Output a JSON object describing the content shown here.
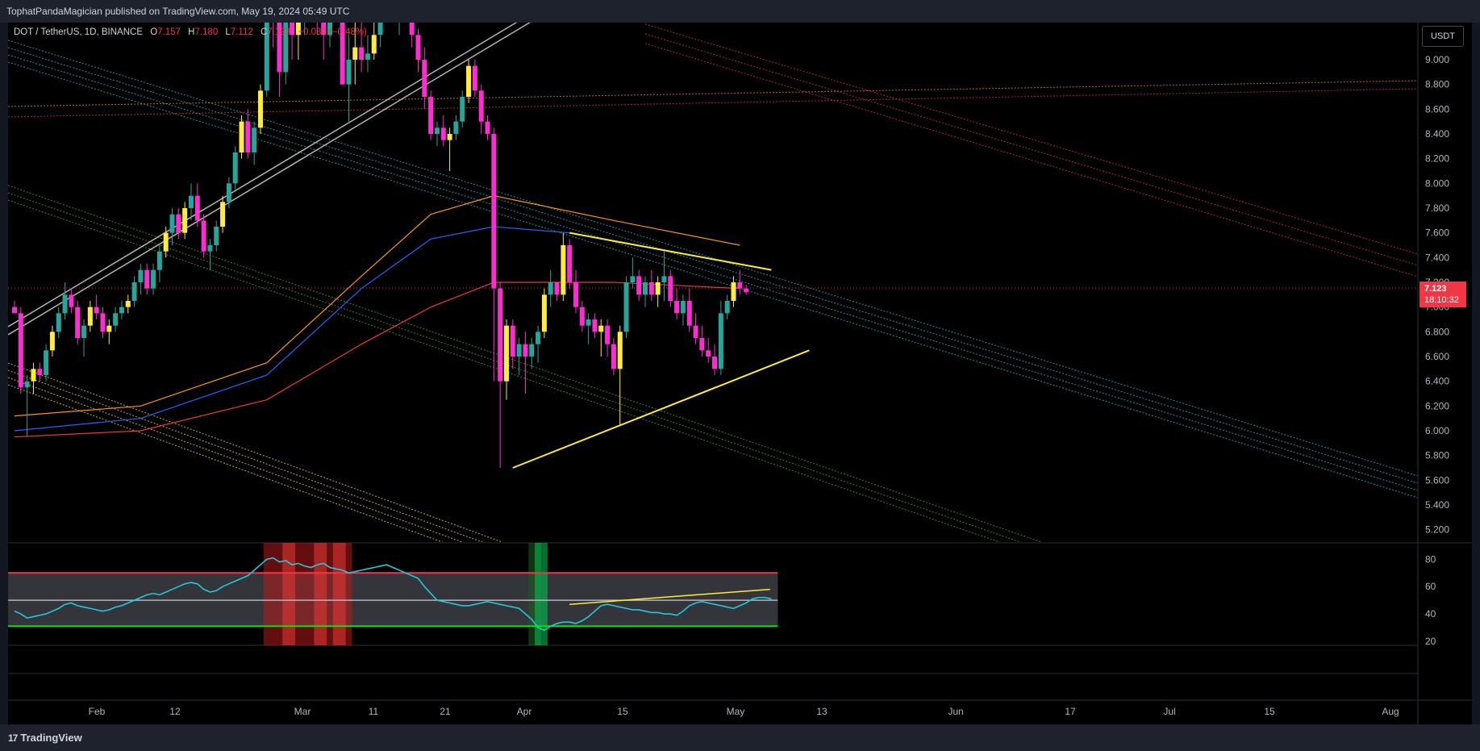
{
  "header": {
    "published": "TophatPandaMagician published on TradingView.com, May 19, 2024 05:49 UTC"
  },
  "legend": {
    "symbol": "DOT / TetherUS, 1D, BINANCE",
    "open_label": "O",
    "open": "7.157",
    "high_label": "H",
    "high": "7.180",
    "low_label": "L",
    "low": "7.112",
    "close_label": "C",
    "close": "7.123",
    "change": "−0.034 (−0.48%)"
  },
  "currency": "USDT",
  "last_price": {
    "value": "7.123",
    "countdown": "18:10:32"
  },
  "footer": {
    "brand": "TradingView",
    "brand_icon": "tradingview-logo-icon"
  },
  "colors": {
    "up": "#26a69a",
    "down": "#ff2bd3",
    "yellow": "#ffeb3b",
    "ema_orange": "#ff9800",
    "ema_blue": "#2962ff",
    "ema_red": "#f23645",
    "rsi_line": "#26c6da",
    "rsi_upper": "#f23645",
    "rsi_lower": "#00e600"
  },
  "chart_data": {
    "type": "candlestick",
    "price_axis": {
      "ticks": [
        "9.000",
        "8.800",
        "8.600",
        "8.400",
        "8.200",
        "8.000",
        "7.800",
        "7.600",
        "7.400",
        "7.200",
        "7.000",
        "6.800",
        "6.600",
        "6.400",
        "6.200",
        "6.000",
        "5.800",
        "5.600",
        "5.400",
        "5.200"
      ],
      "ylim": [
        5.1,
        9.3
      ]
    },
    "x_axis": {
      "ticks": [
        "Feb",
        "12",
        "Mar",
        "11",
        "21",
        "Apr",
        "15",
        "May",
        "13",
        "Jun",
        "17",
        "Jul",
        "15",
        "Aug"
      ]
    },
    "candles": [
      [
        7.0,
        7.05,
        6.95,
        6.95
      ],
      [
        6.95,
        7.0,
        6.3,
        6.35
      ],
      [
        6.35,
        6.45,
        5.95,
        6.4
      ],
      [
        6.4,
        6.55,
        6.3,
        6.5
      ],
      [
        6.5,
        6.55,
        6.4,
        6.45
      ],
      [
        6.45,
        6.7,
        6.4,
        6.65
      ],
      [
        6.65,
        6.85,
        6.6,
        6.8
      ],
      [
        6.8,
        7.0,
        6.75,
        6.95
      ],
      [
        6.95,
        7.2,
        6.9,
        7.1
      ],
      [
        7.1,
        7.15,
        6.95,
        7.0
      ],
      [
        7.0,
        7.05,
        6.7,
        6.75
      ],
      [
        6.75,
        6.9,
        6.6,
        6.85
      ],
      [
        6.85,
        7.05,
        6.8,
        7.0
      ],
      [
        7.0,
        7.1,
        6.9,
        6.95
      ],
      [
        6.95,
        7.0,
        6.75,
        6.8
      ],
      [
        6.8,
        6.9,
        6.7,
        6.85
      ],
      [
        6.85,
        7.0,
        6.8,
        6.95
      ],
      [
        6.95,
        7.05,
        6.9,
        7.0
      ],
      [
        7.0,
        7.1,
        6.95,
        7.05
      ],
      [
        7.05,
        7.25,
        7.0,
        7.2
      ],
      [
        7.2,
        7.35,
        7.1,
        7.3
      ],
      [
        7.3,
        7.35,
        7.1,
        7.15
      ],
      [
        7.15,
        7.35,
        7.1,
        7.3
      ],
      [
        7.3,
        7.5,
        7.2,
        7.45
      ],
      [
        7.45,
        7.65,
        7.4,
        7.6
      ],
      [
        7.6,
        7.8,
        7.5,
        7.75
      ],
      [
        7.75,
        7.8,
        7.55,
        7.6
      ],
      [
        7.6,
        7.85,
        7.55,
        7.8
      ],
      [
        7.8,
        8.0,
        7.7,
        7.9
      ],
      [
        7.9,
        8.0,
        7.65,
        7.7
      ],
      [
        7.7,
        7.75,
        7.4,
        7.45
      ],
      [
        7.45,
        7.55,
        7.3,
        7.5
      ],
      [
        7.5,
        7.7,
        7.45,
        7.65
      ],
      [
        7.65,
        7.9,
        7.6,
        7.85
      ],
      [
        7.85,
        8.05,
        7.8,
        8.0
      ],
      [
        8.0,
        8.3,
        7.95,
        8.25
      ],
      [
        8.25,
        8.55,
        8.2,
        8.5
      ],
      [
        8.5,
        8.6,
        8.2,
        8.25
      ],
      [
        8.25,
        8.5,
        8.15,
        8.45
      ],
      [
        8.45,
        8.8,
        8.4,
        8.75
      ],
      [
        8.75,
        9.5,
        8.7,
        9.4
      ],
      [
        9.4,
        9.6,
        9.1,
        9.3
      ],
      [
        9.3,
        9.5,
        8.7,
        8.9
      ],
      [
        8.9,
        9.4,
        8.8,
        9.3
      ],
      [
        9.3,
        9.5,
        9.0,
        9.2
      ],
      [
        9.2,
        9.5,
        9.0,
        9.4
      ],
      [
        9.4,
        9.6,
        9.2,
        9.5
      ],
      [
        9.5,
        9.7,
        9.3,
        9.6
      ],
      [
        9.6,
        9.7,
        9.2,
        9.3
      ],
      [
        9.3,
        9.5,
        9.0,
        9.2
      ],
      [
        9.2,
        9.5,
        9.1,
        9.45
      ],
      [
        9.45,
        9.6,
        9.3,
        9.5
      ],
      [
        9.5,
        9.8,
        8.8,
        8.8
      ],
      [
        8.8,
        9.2,
        8.5,
        9.0
      ],
      [
        9.0,
        9.3,
        8.8,
        9.1
      ],
      [
        9.1,
        9.3,
        8.9,
        9.0
      ],
      [
        9.0,
        9.2,
        8.9,
        9.05
      ],
      [
        9.05,
        9.3,
        9.0,
        9.2
      ],
      [
        9.2,
        9.6,
        9.1,
        9.5
      ],
      [
        9.5,
        9.7,
        9.3,
        9.6
      ],
      [
        9.6,
        9.7,
        9.3,
        9.35
      ],
      [
        9.35,
        9.5,
        9.2,
        9.45
      ],
      [
        9.45,
        9.6,
        9.3,
        9.5
      ],
      [
        9.5,
        9.6,
        9.1,
        9.2
      ],
      [
        9.2,
        9.25,
        8.9,
        9.0
      ],
      [
        9.0,
        9.1,
        8.6,
        8.7
      ],
      [
        8.7,
        8.75,
        8.35,
        8.4
      ],
      [
        8.4,
        8.5,
        8.3,
        8.45
      ],
      [
        8.45,
        8.55,
        8.3,
        8.35
      ],
      [
        8.35,
        8.45,
        8.1,
        8.4
      ],
      [
        8.4,
        8.55,
        8.35,
        8.5
      ],
      [
        8.5,
        8.75,
        8.45,
        8.7
      ],
      [
        8.7,
        9.0,
        8.65,
        8.95
      ],
      [
        8.95,
        9.0,
        8.7,
        8.75
      ],
      [
        8.75,
        8.8,
        8.4,
        8.5
      ],
      [
        8.5,
        8.55,
        8.35,
        8.4
      ],
      [
        8.4,
        8.45,
        6.4,
        7.15
      ],
      [
        7.15,
        7.2,
        5.7,
        6.4
      ],
      [
        6.4,
        6.9,
        6.25,
        6.85
      ],
      [
        6.85,
        6.9,
        6.5,
        6.6
      ],
      [
        6.6,
        6.75,
        6.45,
        6.7
      ],
      [
        6.7,
        6.8,
        6.3,
        6.6
      ],
      [
        6.6,
        6.75,
        6.5,
        6.7
      ],
      [
        6.7,
        6.85,
        6.55,
        6.8
      ],
      [
        6.8,
        7.15,
        6.75,
        7.1
      ],
      [
        7.1,
        7.3,
        7.0,
        7.2
      ],
      [
        7.2,
        7.2,
        7.05,
        7.1
      ],
      [
        7.1,
        7.6,
        7.05,
        7.5
      ],
      [
        7.5,
        7.55,
        7.15,
        7.2
      ],
      [
        7.2,
        7.3,
        6.95,
        7.0
      ],
      [
        7.0,
        7.05,
        6.8,
        6.85
      ],
      [
        6.85,
        6.95,
        6.7,
        6.9
      ],
      [
        6.9,
        6.95,
        6.75,
        6.8
      ],
      [
        6.8,
        6.9,
        6.6,
        6.85
      ],
      [
        6.85,
        6.9,
        6.6,
        6.7
      ],
      [
        6.7,
        6.75,
        6.45,
        6.5
      ],
      [
        6.5,
        6.85,
        6.05,
        6.8
      ],
      [
        6.8,
        7.25,
        6.75,
        7.2
      ],
      [
        7.2,
        7.4,
        7.15,
        7.25
      ],
      [
        7.25,
        7.3,
        7.05,
        7.1
      ],
      [
        7.1,
        7.25,
        7.0,
        7.2
      ],
      [
        7.2,
        7.3,
        7.05,
        7.1
      ],
      [
        7.1,
        7.25,
        7.0,
        7.2
      ],
      [
        7.2,
        7.45,
        7.05,
        7.25
      ],
      [
        7.25,
        7.3,
        7.0,
        7.05
      ],
      [
        7.05,
        7.15,
        6.9,
        6.95
      ],
      [
        6.95,
        7.1,
        6.85,
        7.05
      ],
      [
        7.05,
        7.15,
        6.8,
        6.85
      ],
      [
        6.85,
        6.95,
        6.7,
        6.75
      ],
      [
        6.75,
        6.85,
        6.6,
        6.65
      ],
      [
        6.65,
        6.75,
        6.55,
        6.6
      ],
      [
        6.6,
        6.7,
        6.45,
        6.5
      ],
      [
        6.5,
        7.05,
        6.45,
        6.95
      ],
      [
        6.95,
        7.1,
        6.9,
        7.05
      ],
      [
        7.05,
        7.25,
        7.0,
        7.2
      ],
      [
        7.2,
        7.3,
        7.1,
        7.15
      ],
      [
        7.15,
        7.18,
        7.1,
        7.12
      ]
    ],
    "ema_orange": [
      [
        0,
        6.12
      ],
      [
        20,
        6.2
      ],
      [
        40,
        6.55
      ],
      [
        55,
        7.25
      ],
      [
        66,
        7.75
      ],
      [
        76,
        7.9
      ],
      [
        95,
        7.7
      ],
      [
        115,
        7.5
      ]
    ],
    "ema_blue": [
      [
        0,
        6.0
      ],
      [
        20,
        6.1
      ],
      [
        40,
        6.45
      ],
      [
        55,
        7.15
      ],
      [
        66,
        7.55
      ],
      [
        76,
        7.65
      ],
      [
        88,
        7.6
      ]
    ],
    "ema_red": [
      [
        0,
        5.95
      ],
      [
        20,
        6.0
      ],
      [
        40,
        6.25
      ],
      [
        55,
        6.7
      ],
      [
        66,
        7.0
      ],
      [
        76,
        7.2
      ],
      [
        95,
        7.2
      ],
      [
        115,
        7.15
      ]
    ],
    "triangle_upper": [
      [
        88,
        7.6
      ],
      [
        120,
        7.3
      ]
    ],
    "triangle_lower": [
      [
        79,
        5.7
      ],
      [
        126,
        6.65
      ]
    ],
    "rsi": {
      "ticks": [
        "80",
        "60",
        "40",
        "20"
      ],
      "ylim": [
        17,
        92
      ],
      "upper_band": 70,
      "lower_band": 31,
      "mid": 50,
      "values": [
        42,
        40,
        37,
        38,
        39,
        40,
        42,
        44,
        47,
        48,
        46,
        45,
        44,
        43,
        42,
        43,
        45,
        46,
        48,
        50,
        52,
        54,
        55,
        54,
        56,
        58,
        60,
        62,
        63,
        62,
        58,
        56,
        57,
        60,
        62,
        64,
        66,
        68,
        72,
        76,
        80,
        81,
        78,
        79,
        76,
        77,
        75,
        74,
        76,
        77,
        74,
        73,
        72,
        70,
        71,
        72,
        73,
        74,
        75,
        76,
        74,
        72,
        70,
        68,
        66,
        60,
        55,
        50,
        49,
        48,
        47,
        46,
        46,
        47,
        48,
        49,
        48,
        47,
        46,
        45,
        44,
        40,
        36,
        30,
        28,
        31,
        33,
        34,
        34,
        33,
        35,
        38,
        42,
        46,
        47,
        46,
        45,
        44,
        43,
        43,
        42,
        41,
        41,
        40,
        40,
        39,
        42,
        46,
        48,
        49,
        48,
        47,
        46,
        45,
        44,
        46,
        48,
        51,
        52,
        52,
        51
      ]
    }
  }
}
